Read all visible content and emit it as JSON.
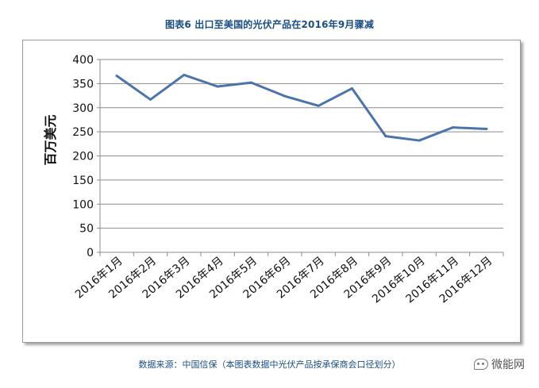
{
  "chart_data": {
    "type": "line",
    "title": "图表6  出口至美国的光伏产品在2016年9月骤减",
    "ylabel": "百万美元",
    "xlabel": "",
    "ylim": [
      0,
      400
    ],
    "y_ticks": [
      0,
      50,
      100,
      150,
      200,
      250,
      300,
      350,
      400
    ],
    "categories": [
      "2016年1月",
      "2016年2月",
      "2016年3月",
      "2016年4月",
      "2016年5月",
      "2016年6月",
      "2016年7月",
      "2016年8月",
      "2016年9月",
      "2016年10月",
      "2016年11月",
      "2016年12月"
    ],
    "series": [
      {
        "name": "出口至美国",
        "values": [
          366,
          317,
          368,
          344,
          352,
          324,
          304,
          340,
          241,
          232,
          259,
          256
        ]
      }
    ],
    "grid": true,
    "line_color": "#4a74ab"
  },
  "footer": {
    "source": "数据来源：中国信保（本图表数据中光伏产品按承保商会口径划分）",
    "watermark": "微能网"
  }
}
